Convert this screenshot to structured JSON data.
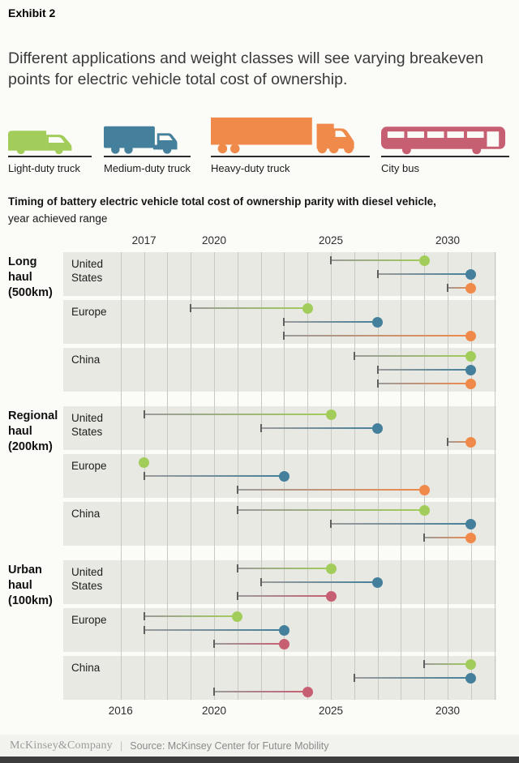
{
  "exhibit_label": "Exhibit 2",
  "title": "Different applications and weight classes will see varying breakeven points for electric vehicle total cost of ownership.",
  "legend": {
    "items": [
      {
        "key": "light",
        "id": "light-duty-truck",
        "label": "Light-duty truck",
        "color": "#a3cd5b"
      },
      {
        "key": "medium",
        "id": "medium-duty-truck",
        "label": "Medium-duty truck",
        "color": "#44809b"
      },
      {
        "key": "heavy",
        "id": "heavy-duty-truck",
        "label": "Heavy-duty truck",
        "color": "#f08a4b"
      },
      {
        "key": "bus",
        "id": "city-bus",
        "label": "City bus",
        "color": "#c75f72"
      }
    ]
  },
  "chart_data": {
    "type": "range-dot",
    "title": "Timing of battery electric vehicle total cost of ownership parity with diesel vehicle,",
    "subtitle": "year achieved range",
    "x_axis": {
      "top_tick_labels": [
        2017,
        2020,
        2025,
        2030
      ],
      "bottom_tick_labels": [
        2016,
        2020,
        2025,
        2030
      ],
      "gridlines": {
        "from": 2016,
        "to": 2032,
        "step": 1
      }
    },
    "vehicle_colors": {
      "light": "#a3cd5b",
      "medium": "#44809b",
      "heavy": "#f08a4b",
      "bus": "#c75f72"
    },
    "groups": [
      {
        "label": "Long haul",
        "sublabel": "(500km)",
        "regions": [
          {
            "name": "United States",
            "ranges": [
              {
                "vehicle": "light",
                "start": 2025,
                "end": 2029
              },
              {
                "vehicle": "medium",
                "start": 2027,
                "end": 2031
              },
              {
                "vehicle": "heavy",
                "start": 2030,
                "end": 2031
              }
            ]
          },
          {
            "name": "Europe",
            "ranges": [
              {
                "vehicle": "light",
                "start": 2019,
                "end": 2024
              },
              {
                "vehicle": "medium",
                "start": 2023,
                "end": 2027
              },
              {
                "vehicle": "heavy",
                "start": 2023,
                "end": 2031
              }
            ]
          },
          {
            "name": "China",
            "ranges": [
              {
                "vehicle": "light",
                "start": 2026,
                "end": 2031
              },
              {
                "vehicle": "medium",
                "start": 2027,
                "end": 2031
              },
              {
                "vehicle": "heavy",
                "start": 2027,
                "end": 2031
              }
            ]
          }
        ]
      },
      {
        "label": "Regional haul",
        "sublabel": "(200km)",
        "regions": [
          {
            "name": "United States",
            "ranges": [
              {
                "vehicle": "light",
                "start": 2017,
                "end": 2025
              },
              {
                "vehicle": "medium",
                "start": 2022,
                "end": 2027
              },
              {
                "vehicle": "heavy",
                "start": 2030,
                "end": 2031
              }
            ]
          },
          {
            "name": "Europe",
            "ranges": [
              {
                "vehicle": "light",
                "start": 2017,
                "end": 2017
              },
              {
                "vehicle": "medium",
                "start": 2017,
                "end": 2023
              },
              {
                "vehicle": "heavy",
                "start": 2021,
                "end": 2029
              }
            ]
          },
          {
            "name": "China",
            "ranges": [
              {
                "vehicle": "light",
                "start": 2021,
                "end": 2029
              },
              {
                "vehicle": "medium",
                "start": 2025,
                "end": 2031
              },
              {
                "vehicle": "heavy",
                "start": 2029,
                "end": 2031
              }
            ]
          }
        ]
      },
      {
        "label": "Urban haul",
        "sublabel": "(100km)",
        "regions": [
          {
            "name": "United States",
            "ranges": [
              {
                "vehicle": "light",
                "start": 2021,
                "end": 2025
              },
              {
                "vehicle": "medium",
                "start": 2022,
                "end": 2027
              },
              {
                "vehicle": "bus",
                "start": 2021,
                "end": 2025
              }
            ]
          },
          {
            "name": "Europe",
            "ranges": [
              {
                "vehicle": "light",
                "start": 2017,
                "end": 2021
              },
              {
                "vehicle": "medium",
                "start": 2017,
                "end": 2023
              },
              {
                "vehicle": "bus",
                "start": 2020,
                "end": 2023
              }
            ]
          },
          {
            "name": "China",
            "ranges": [
              {
                "vehicle": "light",
                "start": 2029,
                "end": 2031
              },
              {
                "vehicle": "medium",
                "start": 2026,
                "end": 2031
              },
              {
                "vehicle": "bus",
                "start": 2020,
                "end": 2024
              }
            ]
          }
        ]
      }
    ]
  },
  "footer": {
    "brand": "McKinsey&Company",
    "divider": "|",
    "source": "Source: McKinsey Center for Future Mobility"
  }
}
